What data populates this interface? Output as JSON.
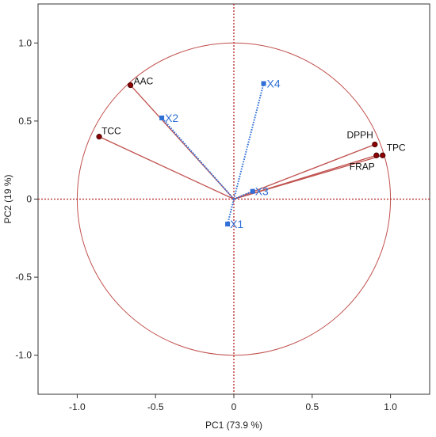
{
  "chart_data": {
    "type": "scatter",
    "subtype": "pca-correlation-biplot",
    "title": "",
    "xlabel": "PC1  (73.9 %)",
    "ylabel": "PC2  (19 %)",
    "xlim": [
      -1.25,
      1.25
    ],
    "ylim": [
      -1.25,
      1.25
    ],
    "xticks": [
      -1.0,
      -0.5,
      0,
      0.5,
      1.0
    ],
    "xtick_labels": [
      "-1.0",
      "-0.5",
      "0",
      "0.5",
      "1.0"
    ],
    "yticks": [
      -1.0,
      -0.5,
      0,
      0.5,
      1.0
    ],
    "ytick_labels": [
      "-1.0",
      "-0.5",
      "0",
      "0.5",
      "1.0"
    ],
    "unit_circle": true,
    "grid": false,
    "zero_lines": true,
    "series": [
      {
        "style": "solid-loadings",
        "color": "#c0504d",
        "points": [
          {
            "label": "AAC",
            "x": -0.66,
            "y": 0.73
          },
          {
            "label": "TCC",
            "x": -0.86,
            "y": 0.4
          },
          {
            "label": "DPPH",
            "x": 0.9,
            "y": 0.35
          },
          {
            "label": "TPC",
            "x": 0.95,
            "y": 0.28
          },
          {
            "label": "FRAP",
            "x": 0.91,
            "y": 0.28
          }
        ]
      },
      {
        "style": "dotted-supplementary",
        "color": "#2f6fd6",
        "points": [
          {
            "label": "X1",
            "x": -0.04,
            "y": -0.16
          },
          {
            "label": "X2",
            "x": -0.46,
            "y": 0.52
          },
          {
            "label": "X3",
            "x": 0.12,
            "y": 0.05
          },
          {
            "label": "X4",
            "x": 0.19,
            "y": 0.74
          }
        ]
      }
    ]
  }
}
